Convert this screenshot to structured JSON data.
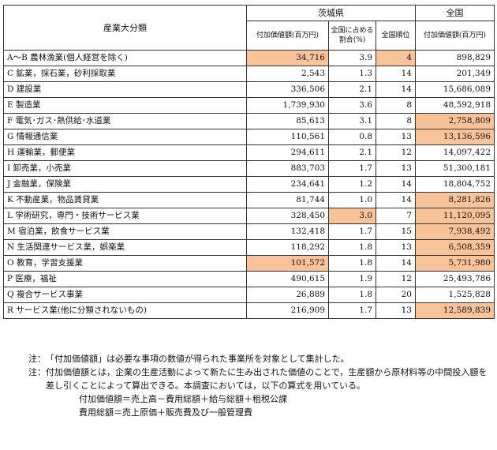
{
  "table": {
    "corner_header": "産業大分類",
    "group_ibaraki": "茨城県",
    "group_national": "全国",
    "col_value_ibaraki": "付加価値額(百万円)",
    "col_share": "全国に占める割合(%)",
    "col_rank": "全国順位",
    "col_value_national": "付加価値額(百万円)",
    "rows": [
      {
        "label": "A～B 農林漁業(個人経営を除く)",
        "ibaraki": "34,716",
        "share": "3.9",
        "rank": "4",
        "national": "898,829",
        "hl_ibaraki": true,
        "hl_share": false,
        "hl_rank": true,
        "hl_national": false
      },
      {
        "label": "C 鉱業，採石業，砂利採取業",
        "ibaraki": "2,543",
        "share": "1.3",
        "rank": "14",
        "national": "201,349",
        "hl_ibaraki": false,
        "hl_share": false,
        "hl_rank": false,
        "hl_national": false
      },
      {
        "label": "D 建設業",
        "ibaraki": "336,506",
        "share": "2.1",
        "rank": "14",
        "national": "15,686,089",
        "hl_ibaraki": false,
        "hl_share": false,
        "hl_rank": false,
        "hl_national": false
      },
      {
        "label": "E 製造業",
        "ibaraki": "1,739,930",
        "share": "3.6",
        "rank": "8",
        "national": "48,592,918",
        "hl_ibaraki": false,
        "hl_share": false,
        "hl_rank": false,
        "hl_national": false
      },
      {
        "label": "F 電気･ガス･熱供給･水道業",
        "ibaraki": "85,613",
        "share": "3.1",
        "rank": "8",
        "national": "2,758,809",
        "hl_ibaraki": false,
        "hl_share": false,
        "hl_rank": false,
        "hl_national": true
      },
      {
        "label": "G 情報通信業",
        "ibaraki": "110,561",
        "share": "0.8",
        "rank": "13",
        "national": "13,136,596",
        "hl_ibaraki": false,
        "hl_share": false,
        "hl_rank": false,
        "hl_national": true
      },
      {
        "label": "H 運輸業，郵便業",
        "ibaraki": "294,611",
        "share": "2.1",
        "rank": "12",
        "national": "14,097,422",
        "hl_ibaraki": false,
        "hl_share": false,
        "hl_rank": false,
        "hl_national": false
      },
      {
        "label": "I 卸売業，小売業",
        "ibaraki": "883,703",
        "share": "1.7",
        "rank": "13",
        "national": "51,300,181",
        "hl_ibaraki": false,
        "hl_share": false,
        "hl_rank": false,
        "hl_national": false
      },
      {
        "label": "J 金融業，保険業",
        "ibaraki": "234,641",
        "share": "1.2",
        "rank": "14",
        "national": "18,804,752",
        "hl_ibaraki": false,
        "hl_share": false,
        "hl_rank": false,
        "hl_national": false
      },
      {
        "label": "K 不動産業，物品賃貸業",
        "ibaraki": "81,744",
        "share": "1.0",
        "rank": "14",
        "national": "8,281,826",
        "hl_ibaraki": false,
        "hl_share": false,
        "hl_rank": false,
        "hl_national": true
      },
      {
        "label": "L 学術研究，専門・技術サービス業",
        "ibaraki": "328,450",
        "share": "3.0",
        "rank": "7",
        "national": "11,120,095",
        "hl_ibaraki": false,
        "hl_share": true,
        "hl_rank": false,
        "hl_national": true
      },
      {
        "label": "M 宿泊業，飲食サービス業",
        "ibaraki": "132,418",
        "share": "1.7",
        "rank": "15",
        "national": "7,938,492",
        "hl_ibaraki": false,
        "hl_share": false,
        "hl_rank": false,
        "hl_national": true
      },
      {
        "label": "N 生活関連サービス業，娯楽業",
        "ibaraki": "118,292",
        "share": "1.8",
        "rank": "13",
        "national": "6,508,359",
        "hl_ibaraki": false,
        "hl_share": false,
        "hl_rank": false,
        "hl_national": true
      },
      {
        "label": "O 教育，学習支援業",
        "ibaraki": "101,572",
        "share": "1.8",
        "rank": "14",
        "national": "5,731,980",
        "hl_ibaraki": true,
        "hl_share": false,
        "hl_rank": false,
        "hl_national": true
      },
      {
        "label": "P 医療，福祉",
        "ibaraki": "490,615",
        "share": "1.9",
        "rank": "12",
        "national": "25,493,786",
        "hl_ibaraki": false,
        "hl_share": false,
        "hl_rank": false,
        "hl_national": false
      },
      {
        "label": "Q 複合サービス事業",
        "ibaraki": "26,889",
        "share": "1.8",
        "rank": "20",
        "national": "1,525,828",
        "hl_ibaraki": false,
        "hl_share": false,
        "hl_rank": false,
        "hl_national": false
      },
      {
        "label": "R サービス業(他に分類されないもの)",
        "ibaraki": "216,909",
        "share": "1.7",
        "rank": "13",
        "national": "12,589,839",
        "hl_ibaraki": false,
        "hl_share": false,
        "hl_rank": false,
        "hl_national": true
      }
    ]
  },
  "notes": {
    "note1_head": "注：",
    "note1_body": "「付加価値額」は必要な事項の数値が得られた事業所を対象として集計した。",
    "note2_head": "注：",
    "note2_body": "付加価値額とは，企業の生産活動によって新たに生み出された価値のことで，生産額から原材料等の中間投入額を差し引くことによって算出できる。本調査においては，以下の算式を用いている。",
    "formula1": "付加価値額＝売上高－費用総額＋給与総額＋租税公課",
    "formula2": "費用総額＝売上原価＋販売費及び一般管理費"
  },
  "highlight_color": "#f9c39a"
}
